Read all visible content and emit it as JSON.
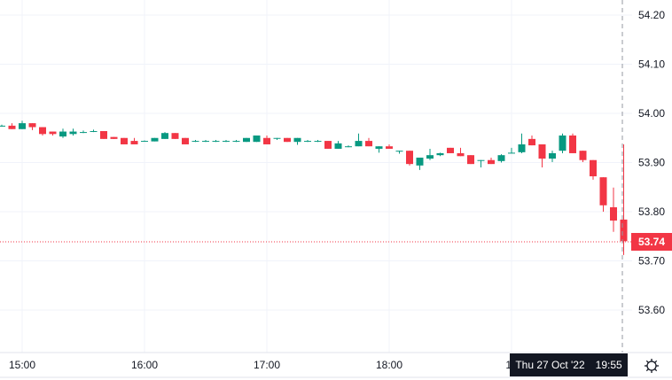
{
  "chart_data": {
    "type": "candlestick",
    "interval_minutes": 5,
    "ylim": [
      53.52,
      54.23
    ],
    "y_ticks": [
      "54.20",
      "54.10",
      "54.00",
      "53.90",
      "53.80",
      "53.70",
      "53.60"
    ],
    "x_ticks": [
      "15:00",
      "16:00",
      "17:00",
      "18:00",
      "19"
    ],
    "grid": true,
    "colors": {
      "up": "#089981",
      "down": "#f23645",
      "grid": "#f0f3fa"
    },
    "last_price": "53.74",
    "crosshair": {
      "date": "Thu 27 Oct '22",
      "time": "19:55"
    },
    "candles": [
      [
        "14:50",
        53.975,
        53.977,
        53.973,
        53.975
      ],
      [
        "14:55",
        53.975,
        53.98,
        53.968,
        53.968
      ],
      [
        "15:00",
        53.968,
        53.985,
        53.968,
        53.98
      ],
      [
        "15:05",
        53.98,
        53.98,
        53.966,
        53.972
      ],
      [
        "15:10",
        53.972,
        53.972,
        53.955,
        53.958
      ],
      [
        "15:15",
        53.963,
        53.963,
        53.955,
        53.958
      ],
      [
        "15:20",
        53.953,
        53.969,
        53.95,
        53.963
      ],
      [
        "15:25",
        53.958,
        53.969,
        53.955,
        53.963
      ],
      [
        "15:30",
        53.962,
        53.965,
        53.96,
        53.962
      ],
      [
        "15:35",
        53.964,
        53.967,
        53.962,
        53.964
      ],
      [
        "15:40",
        53.964,
        53.964,
        53.948,
        53.948
      ],
      [
        "15:45",
        53.952,
        53.952,
        53.948,
        53.948
      ],
      [
        "15:50",
        53.95,
        53.95,
        53.937,
        53.937
      ],
      [
        "15:55",
        53.944,
        53.95,
        53.937,
        53.937
      ],
      [
        "16:00",
        53.944,
        53.945,
        53.943,
        53.944
      ],
      [
        "16:05",
        53.943,
        53.95,
        53.943,
        53.95
      ],
      [
        "16:10",
        53.948,
        53.962,
        53.948,
        53.96
      ],
      [
        "16:15",
        53.96,
        53.96,
        53.948,
        53.948
      ],
      [
        "16:20",
        53.95,
        53.95,
        53.937,
        53.937
      ],
      [
        "16:25",
        53.944,
        53.946,
        53.942,
        53.944
      ],
      [
        "16:30",
        53.944,
        53.946,
        53.942,
        53.944
      ],
      [
        "16:35",
        53.944,
        53.946,
        53.942,
        53.944
      ],
      [
        "16:40",
        53.944,
        53.946,
        53.942,
        53.944
      ],
      [
        "16:45",
        53.944,
        53.946,
        53.942,
        53.944
      ],
      [
        "16:50",
        53.942,
        53.95,
        53.942,
        53.95
      ],
      [
        "16:55",
        53.942,
        53.955,
        53.942,
        53.955
      ],
      [
        "17:00",
        53.95,
        53.955,
        53.937,
        53.937
      ],
      [
        "17:05",
        53.95,
        53.95,
        53.946,
        53.95
      ],
      [
        "17:10",
        53.95,
        53.95,
        53.942,
        53.942
      ],
      [
        "17:15",
        53.942,
        53.95,
        53.936,
        53.95
      ],
      [
        "17:20",
        53.944,
        53.946,
        53.942,
        53.944
      ],
      [
        "17:25",
        53.944,
        53.946,
        53.942,
        53.944
      ],
      [
        "17:30",
        53.944,
        53.944,
        53.928,
        53.928
      ],
      [
        "17:35",
        53.928,
        53.944,
        53.928,
        53.939
      ],
      [
        "17:40",
        53.933,
        53.935,
        53.931,
        53.933
      ],
      [
        "17:45",
        53.933,
        53.959,
        53.933,
        53.944
      ],
      [
        "17:50",
        53.944,
        53.95,
        53.933,
        53.933
      ],
      [
        "17:55",
        53.928,
        53.933,
        53.92,
        53.933
      ],
      [
        "18:00",
        53.933,
        53.937,
        53.928,
        53.928
      ],
      [
        "18:05",
        53.924,
        53.924,
        53.918,
        53.924
      ],
      [
        "18:10",
        53.924,
        53.924,
        53.894,
        53.897
      ],
      [
        "18:15",
        53.894,
        53.91,
        53.885,
        53.91
      ],
      [
        "18:20",
        53.908,
        53.928,
        53.905,
        53.915
      ],
      [
        "18:25",
        53.915,
        53.92,
        53.913,
        53.919
      ],
      [
        "18:30",
        53.93,
        53.93,
        53.919,
        53.919
      ],
      [
        "18:35",
        53.919,
        53.93,
        53.913,
        53.913
      ],
      [
        "18:40",
        53.915,
        53.915,
        53.897,
        53.897
      ],
      [
        "18:45",
        53.905,
        53.905,
        53.89,
        53.905
      ],
      [
        "18:50",
        53.905,
        53.91,
        53.897,
        53.897
      ],
      [
        "18:55",
        53.903,
        53.917,
        53.9,
        53.915
      ],
      [
        "19:00",
        53.919,
        53.93,
        53.919,
        53.92
      ],
      [
        "19:05",
        53.921,
        53.959,
        53.919,
        53.937
      ],
      [
        "19:10",
        53.948,
        53.955,
        53.935,
        53.935
      ],
      [
        "19:15",
        53.937,
        53.937,
        53.89,
        53.908
      ],
      [
        "19:20",
        53.908,
        53.924,
        53.901,
        53.919
      ],
      [
        "19:25",
        53.924,
        53.959,
        53.919,
        53.955
      ],
      [
        "19:30",
        53.955,
        53.959,
        53.919,
        53.919
      ],
      [
        "19:35",
        53.924,
        53.924,
        53.901,
        53.905
      ],
      [
        "19:40",
        53.905,
        53.905,
        53.865,
        53.872
      ],
      [
        "19:45",
        53.87,
        53.87,
        53.8,
        53.813
      ],
      [
        "19:50",
        53.809,
        53.849,
        53.759,
        53.782
      ],
      [
        "19:55",
        53.784,
        53.937,
        53.712,
        53.74
      ]
    ]
  },
  "icons": {
    "settings": "gear-icon"
  }
}
